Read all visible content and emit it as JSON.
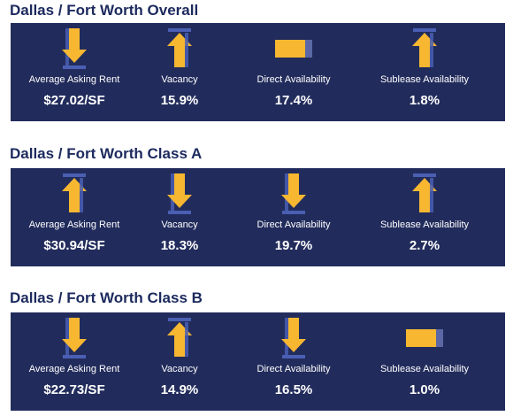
{
  "colors": {
    "title": "#1c2a5e",
    "panel": "#222c5c",
    "arrow": "#f7b731",
    "arrow_bar": "#4a5fb3"
  },
  "sections": [
    {
      "title": "Dallas / Fort Worth Overall",
      "metrics": [
        {
          "label": "Average Asking Rent",
          "value": "$27.02/SF",
          "icon": "arrow-down-icon"
        },
        {
          "label": "Vacancy",
          "value": "15.9%",
          "icon": "arrow-up-icon"
        },
        {
          "label": "Direct Availability",
          "value": "17.4%",
          "icon": "flat-icon"
        },
        {
          "label": "Sublease Availability",
          "value": "1.8%",
          "icon": "arrow-up-icon"
        }
      ]
    },
    {
      "title": "Dallas / Fort Worth Class A",
      "metrics": [
        {
          "label": "Average Asking Rent",
          "value": "$30.94/SF",
          "icon": "arrow-up-icon"
        },
        {
          "label": "Vacancy",
          "value": "18.3%",
          "icon": "arrow-down-icon"
        },
        {
          "label": "Direct Availability",
          "value": "19.7%",
          "icon": "arrow-down-icon"
        },
        {
          "label": "Sublease Availability",
          "value": "2.7%",
          "icon": "arrow-up-icon"
        }
      ]
    },
    {
      "title": "Dallas / Fort Worth Class B",
      "metrics": [
        {
          "label": "Average Asking Rent",
          "value": "$22.73/SF",
          "icon": "arrow-down-icon"
        },
        {
          "label": "Vacancy",
          "value": "14.9%",
          "icon": "arrow-up-icon"
        },
        {
          "label": "Direct Availability",
          "value": "16.5%",
          "icon": "arrow-down-icon"
        },
        {
          "label": "Sublease Availability",
          "value": "1.0%",
          "icon": "flat-icon"
        }
      ]
    }
  ]
}
